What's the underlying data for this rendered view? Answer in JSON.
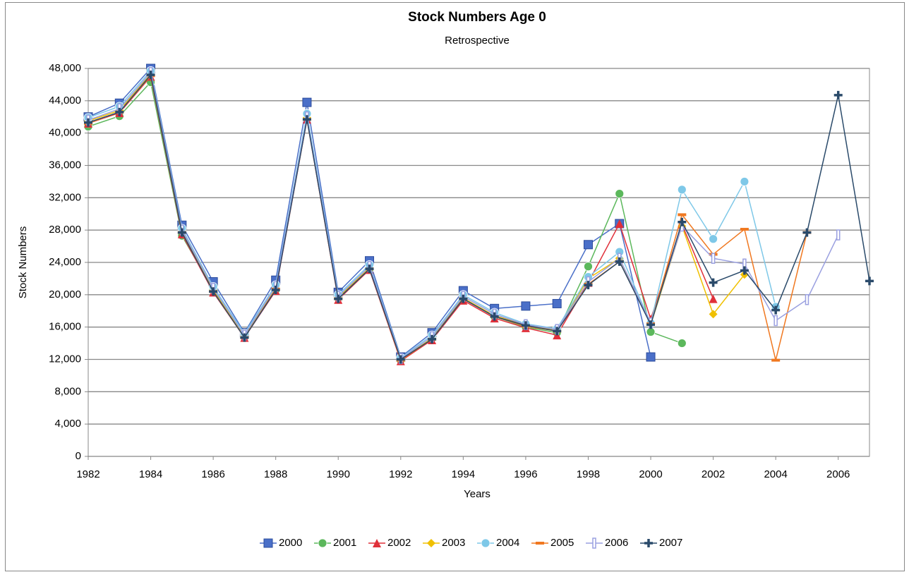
{
  "chart_data": {
    "type": "line",
    "title": "Stock Numbers Age 0",
    "subtitle": "Retrospective",
    "x_label": "Years",
    "y_label": "Stock Numbers",
    "x": [
      1982,
      1983,
      1984,
      1985,
      1986,
      1987,
      1988,
      1989,
      1990,
      1991,
      1992,
      1993,
      1994,
      1995,
      1996,
      1997,
      1998,
      1999,
      2000,
      2001,
      2002,
      2003,
      2004,
      2005,
      2006,
      2007
    ],
    "xlim": [
      1982,
      2007
    ],
    "xticks": [
      1982,
      1984,
      1986,
      1988,
      1990,
      1992,
      1994,
      1996,
      1998,
      2000,
      2002,
      2004,
      2006
    ],
    "ylim": [
      0,
      48000
    ],
    "yticks": [
      0,
      {
        "value": 4000,
        "label": "4,000"
      },
      {
        "value": 8000,
        "label": "8,000"
      },
      {
        "value": 12000,
        "label": "12,000"
      },
      {
        "value": 16000,
        "label": "16,000"
      },
      {
        "value": 20000,
        "label": "20,000"
      },
      {
        "value": 24000,
        "label": "24,000"
      },
      {
        "value": 28000,
        "label": "28,000"
      },
      {
        "value": 32000,
        "label": "32,000"
      },
      {
        "value": 36000,
        "label": "36,000"
      },
      {
        "value": 40000,
        "label": "40,000"
      },
      {
        "value": 44000,
        "label": "44,000"
      },
      {
        "value": 48000,
        "label": "48,000"
      }
    ],
    "grid": true,
    "legend": "bottom",
    "series": [
      {
        "name": "2000",
        "color": "#4a6fc8",
        "marker": "square",
        "values": [
          42000,
          43700,
          48000,
          28600,
          21600,
          15300,
          21800,
          43800,
          20300,
          24200,
          12300,
          15300,
          20500,
          18300,
          18600,
          18900,
          26200,
          28800,
          12300,
          null,
          null,
          null,
          null,
          null,
          null,
          null
        ]
      },
      {
        "name": "2001",
        "color": "#5cb85c",
        "marker": "circle",
        "values": [
          40800,
          42100,
          46300,
          27300,
          20600,
          14800,
          20600,
          41800,
          19600,
          23200,
          11900,
          14600,
          19500,
          17300,
          16000,
          15300,
          23500,
          32500,
          15400,
          14000,
          null,
          null,
          null,
          null,
          null,
          null
        ]
      },
      {
        "name": "2002",
        "color": "#e0303a",
        "marker": "triangle",
        "values": [
          41200,
          42500,
          47000,
          27500,
          20300,
          14700,
          20500,
          41700,
          19400,
          23100,
          11800,
          14400,
          19300,
          17100,
          15900,
          15000,
          21500,
          28800,
          17000,
          28700,
          19500,
          null,
          null,
          null,
          null,
          null
        ]
      },
      {
        "name": "2003",
        "color": "#f0c000",
        "marker": "diamond",
        "values": [
          41500,
          42800,
          47300,
          27800,
          20500,
          14900,
          20800,
          41900,
          19700,
          23300,
          12000,
          14600,
          19600,
          17400,
          16300,
          15600,
          22000,
          24500,
          16300,
          28500,
          17600,
          22500,
          null,
          null,
          null,
          null
        ]
      },
      {
        "name": "2004",
        "color": "#7ec8e8",
        "marker": "circle",
        "values": [
          41900,
          43300,
          47700,
          28200,
          21000,
          15200,
          21200,
          42400,
          20000,
          23700,
          12200,
          15000,
          20000,
          17800,
          16400,
          15800,
          22200,
          25300,
          16500,
          33000,
          26900,
          34000,
          18500,
          null,
          null,
          null
        ]
      },
      {
        "name": "2005",
        "color": "#f07820",
        "marker": "dash",
        "values": [
          41200,
          42600,
          47100,
          27700,
          20400,
          14700,
          20700,
          41700,
          19500,
          23200,
          11900,
          14500,
          19500,
          17300,
          16100,
          15500,
          21300,
          24100,
          16400,
          29900,
          25000,
          28100,
          11900,
          27700,
          null,
          null
        ]
      },
      {
        "name": "2006",
        "color": "#9aa0e0",
        "marker": "bar",
        "values": [
          41600,
          43000,
          47500,
          28000,
          20800,
          15000,
          21000,
          42000,
          19800,
          23500,
          12100,
          14800,
          19800,
          17600,
          16300,
          15700,
          21600,
          24500,
          16500,
          28500,
          24500,
          23800,
          16800,
          19400,
          27400,
          null
        ]
      },
      {
        "name": "2007",
        "color": "#2a4a6a",
        "marker": "plus",
        "values": [
          41300,
          42600,
          47200,
          27700,
          20400,
          14700,
          20600,
          41700,
          19500,
          23200,
          12000,
          14500,
          19500,
          17300,
          16200,
          15500,
          21200,
          24100,
          16300,
          29000,
          21500,
          23000,
          18100,
          27700,
          44700,
          21700
        ]
      }
    ]
  }
}
